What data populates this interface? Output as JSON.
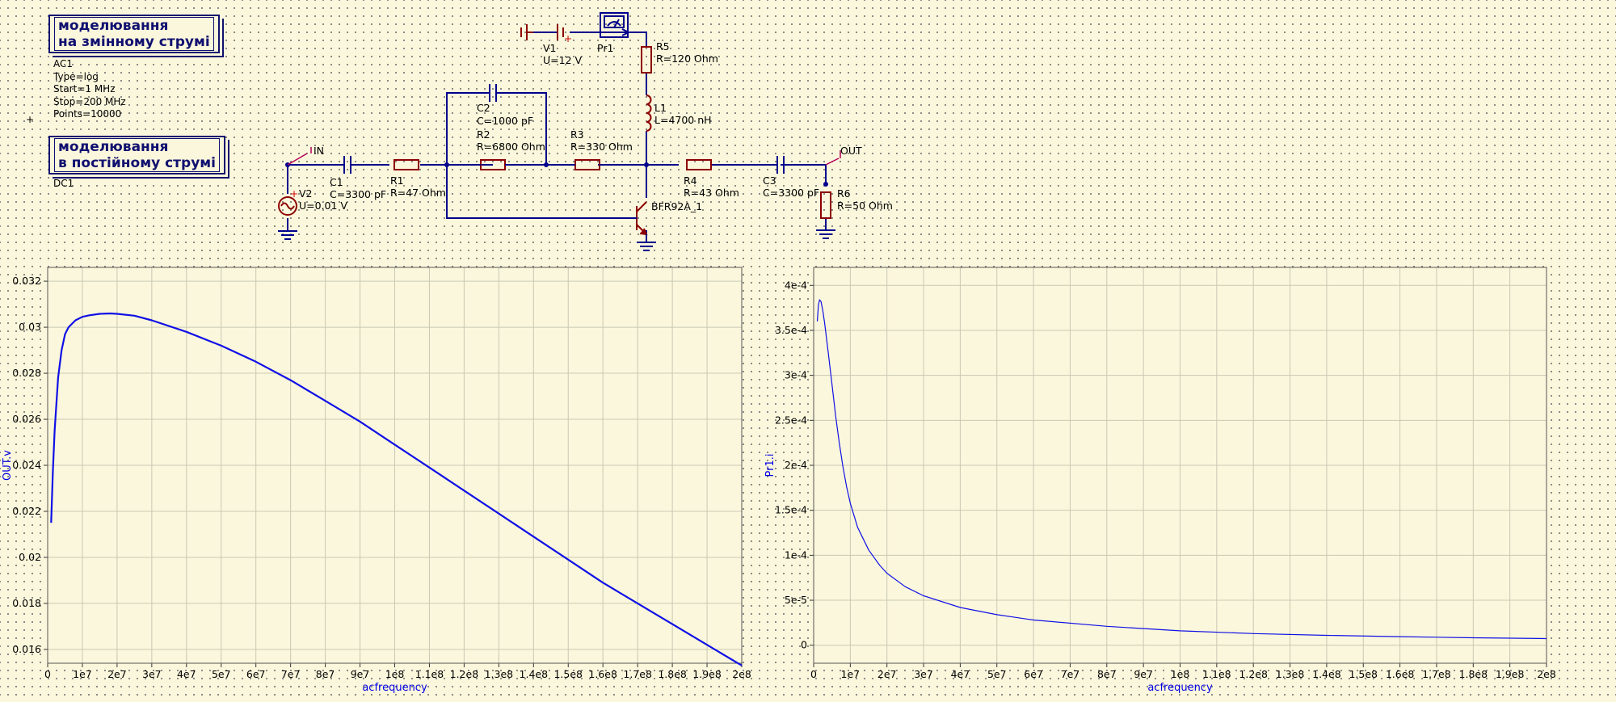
{
  "colors": {
    "wire": "#00008c",
    "component": "#8c0000",
    "port": "#b4005a",
    "trace": "#1010e6",
    "grid": "#c8c8b4",
    "background": "#fbf7dc",
    "axis_label": "#0000e6"
  },
  "sim_ac": {
    "title_line1": "моделювання",
    "title_line2": "на змінному струмі",
    "name": "AC1",
    "props": [
      "Type=log",
      "Start=1 MHz",
      "Stop=200 MHz",
      "Points=10000"
    ]
  },
  "sim_dc": {
    "title_line1": "моделювання",
    "title_line2": "в постійному струмі",
    "name": "DC1"
  },
  "components": {
    "v1": {
      "name": "V1",
      "value": "U=12 V"
    },
    "pr1": {
      "name": "Pr1"
    },
    "r5": {
      "name": "R5",
      "value": "R=120 Ohm"
    },
    "l1": {
      "name": "L1",
      "value": "L=4700 nH"
    },
    "c2": {
      "name": "C2",
      "value": "C=1000 pF"
    },
    "r2": {
      "name": "R2",
      "value": "R=6800 Ohm"
    },
    "r3": {
      "name": "R3",
      "value": "R=330 Ohm"
    },
    "c1": {
      "name": "C1",
      "value": "C=3300 pF"
    },
    "r1": {
      "name": "R1",
      "value": "R=47 Ohm"
    },
    "v2": {
      "name": "V2",
      "value": "U=0.01 V"
    },
    "r4": {
      "name": "R4",
      "value": "R=43 Ohm"
    },
    "c3": {
      "name": "C3",
      "value": "C=3300 pF"
    },
    "r6": {
      "name": "R6",
      "value": "R=50 Ohm"
    },
    "q1": {
      "name": "BFR92A_1"
    },
    "port_in": {
      "name": "IN"
    },
    "port_out": {
      "name": "OUT"
    }
  },
  "chart_data": [
    {
      "type": "line",
      "title": "",
      "xlabel": "acfrequency",
      "ylabel": "OUT.v",
      "xlim": [
        0,
        200000000
      ],
      "ylim": [
        0.0154,
        0.0326
      ],
      "grid": true,
      "x_ticks": [
        "0",
        "1e7",
        "2e7",
        "3e7",
        "4e7",
        "5e7",
        "6e7",
        "7e7",
        "8e7",
        "9e7",
        "1e8",
        "1.1e8",
        "1.2e8",
        "1.3e8",
        "1.4e8",
        "1.5e8",
        "1.6e8",
        "1.7e8",
        "1.8e8",
        "1.9e8",
        "2e8"
      ],
      "y_ticks": [
        "0.016",
        "0.018",
        "0.02",
        "0.022",
        "0.024",
        "0.026",
        "0.028",
        "0.03",
        "0.032"
      ],
      "series": [
        {
          "x": [
            1000000,
            1500000,
            2000000,
            3000000,
            4000000,
            5000000,
            6000000,
            8000000,
            10000000,
            12000000,
            15000000,
            18000000,
            20000000,
            25000000,
            30000000,
            40000000,
            50000000,
            60000000,
            70000000,
            80000000,
            90000000,
            100000000,
            110000000,
            120000000,
            130000000,
            140000000,
            150000000,
            160000000,
            170000000,
            180000000,
            190000000,
            200000000
          ],
          "y": [
            0.0215,
            0.0237,
            0.0255,
            0.0278,
            0.029,
            0.0297,
            0.03,
            0.0303,
            0.03045,
            0.03052,
            0.03058,
            0.0306,
            0.03058,
            0.0305,
            0.0303,
            0.0298,
            0.0292,
            0.0285,
            0.0277,
            0.0268,
            0.0259,
            0.0249,
            0.0239,
            0.0229,
            0.0219,
            0.0209,
            0.0199,
            0.0189,
            0.018,
            0.0171,
            0.0162,
            0.0153
          ]
        }
      ]
    },
    {
      "type": "line",
      "title": "",
      "xlabel": "acfrequency",
      "ylabel": "Pr1.i",
      "xlim": [
        0,
        200000000
      ],
      "ylim": [
        -2e-05,
        0.00042
      ],
      "grid": true,
      "x_ticks": [
        "0",
        "1e7",
        "2e7",
        "3e7",
        "4e7",
        "5e7",
        "6e7",
        "7e7",
        "8e7",
        "9e7",
        "1e8",
        "1.1e8",
        "1.2e8",
        "1.3e8",
        "1.4e8",
        "1.5e8",
        "1.6e8",
        "1.7e8",
        "1.8e8",
        "1.9e8",
        "2e8"
      ],
      "y_ticks": [
        "0",
        "5e-5",
        "1e-4",
        "1.5e-4",
        "2e-4",
        "2.5e-4",
        "3e-4",
        "3.5e-4",
        "4e-4"
      ],
      "series": [
        {
          "x": [
            1000000,
            1300000,
            1600000,
            2000000,
            2500000,
            3000000,
            4000000,
            5000000,
            6000000,
            7000000,
            8000000,
            9000000,
            10000000,
            12000000,
            15000000,
            18000000,
            20000000,
            25000000,
            30000000,
            40000000,
            50000000,
            60000000,
            80000000,
            100000000,
            120000000,
            140000000,
            160000000,
            180000000,
            200000000
          ],
          "y": [
            0.00036,
            0.000378,
            0.000384,
            0.000382,
            0.000372,
            0.000358,
            0.000325,
            0.00029,
            0.000255,
            0.000225,
            0.000198,
            0.000176,
            0.000158,
            0.000131,
            0.000106,
            8.9e-05,
            8e-05,
            6.5e-05,
            5.5e-05,
            4.2e-05,
            3.4e-05,
            2.8e-05,
            2.1e-05,
            1.6e-05,
            1.3e-05,
            1.1e-05,
            9.5e-06,
            8.3e-06,
            7.4e-06
          ]
        }
      ]
    }
  ]
}
